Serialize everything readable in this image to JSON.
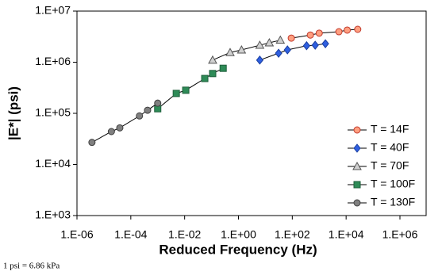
{
  "chart_data": {
    "type": "scatter",
    "line": true,
    "log_x": true,
    "log_y": true,
    "grid": false,
    "legend": "right",
    "xlabel": "Reduced Frequency (Hz)",
    "ylabel": "|E*| (psi)",
    "note": "1 psi = 6.86 kPa",
    "xlim": [
      1e-06,
      1000000.0
    ],
    "xticks": [
      {
        "value": 1e-06,
        "label": "1.E-06"
      },
      {
        "value": 0.0001,
        "label": "1.E-04"
      },
      {
        "value": 0.01,
        "label": "1.E-02"
      },
      {
        "value": 1,
        "label": "1.E+00"
      },
      {
        "value": 100.0,
        "label": "1.E+02"
      },
      {
        "value": 10000.0,
        "label": "1.E+04"
      },
      {
        "value": 1000000.0,
        "label": "1.E+06"
      }
    ],
    "ylim": [
      1000.0,
      10000000.0
    ],
    "yticks": [
      {
        "value": 1000.0,
        "label": "1.E+03"
      },
      {
        "value": 10000.0,
        "label": "1.E+04"
      },
      {
        "value": 100000.0,
        "label": "1.E+05"
      },
      {
        "value": 1000000.0,
        "label": "1.E+06"
      },
      {
        "value": 10000000.0,
        "label": "1.E+07"
      }
    ],
    "series": [
      {
        "name": "T = 14F",
        "marker": "circle",
        "color": "#ff9f80",
        "stroke": "#c0392b",
        "x": [
          92,
          470,
          1000,
          5400,
          11000,
          27000
        ],
        "values": [
          2960000,
          3400000,
          3700000,
          3950000,
          4250000,
          4400000
        ]
      },
      {
        "name": "T = 40F",
        "marker": "diamond",
        "color": "#2f5fe0",
        "stroke": "#1a3fa0",
        "x": [
          6.2,
          31,
          66,
          340,
          710,
          1700
        ],
        "values": [
          1100000,
          1500000,
          1740000,
          2100000,
          2150000,
          2300000
        ]
      },
      {
        "name": "T = 70F",
        "marker": "triangle",
        "color": "#d0d0d0",
        "stroke": "#555555",
        "x": [
          0.11,
          0.49,
          1.3,
          6.2,
          14,
          36
        ],
        "values": [
          1100000,
          1550000,
          1740000,
          2150000,
          2400000,
          2700000
        ]
      },
      {
        "name": "T = 100F",
        "marker": "square",
        "color": "#2e8b57",
        "stroke": "#1f5f3b",
        "x": [
          0.001,
          0.0049,
          0.011,
          0.056,
          0.11,
          0.27
        ],
        "values": [
          123000,
          245000,
          283000,
          480000,
          600000,
          760000
        ]
      },
      {
        "name": "T = 130F",
        "marker": "circle",
        "color": "#808080",
        "stroke": "#404040",
        "x": [
          3.6e-06,
          1.9e-05,
          3.9e-05,
          0.00021,
          0.00042,
          0.001
        ],
        "values": [
          27000,
          44000,
          52000,
          89000,
          115000,
          158000
        ]
      }
    ]
  }
}
